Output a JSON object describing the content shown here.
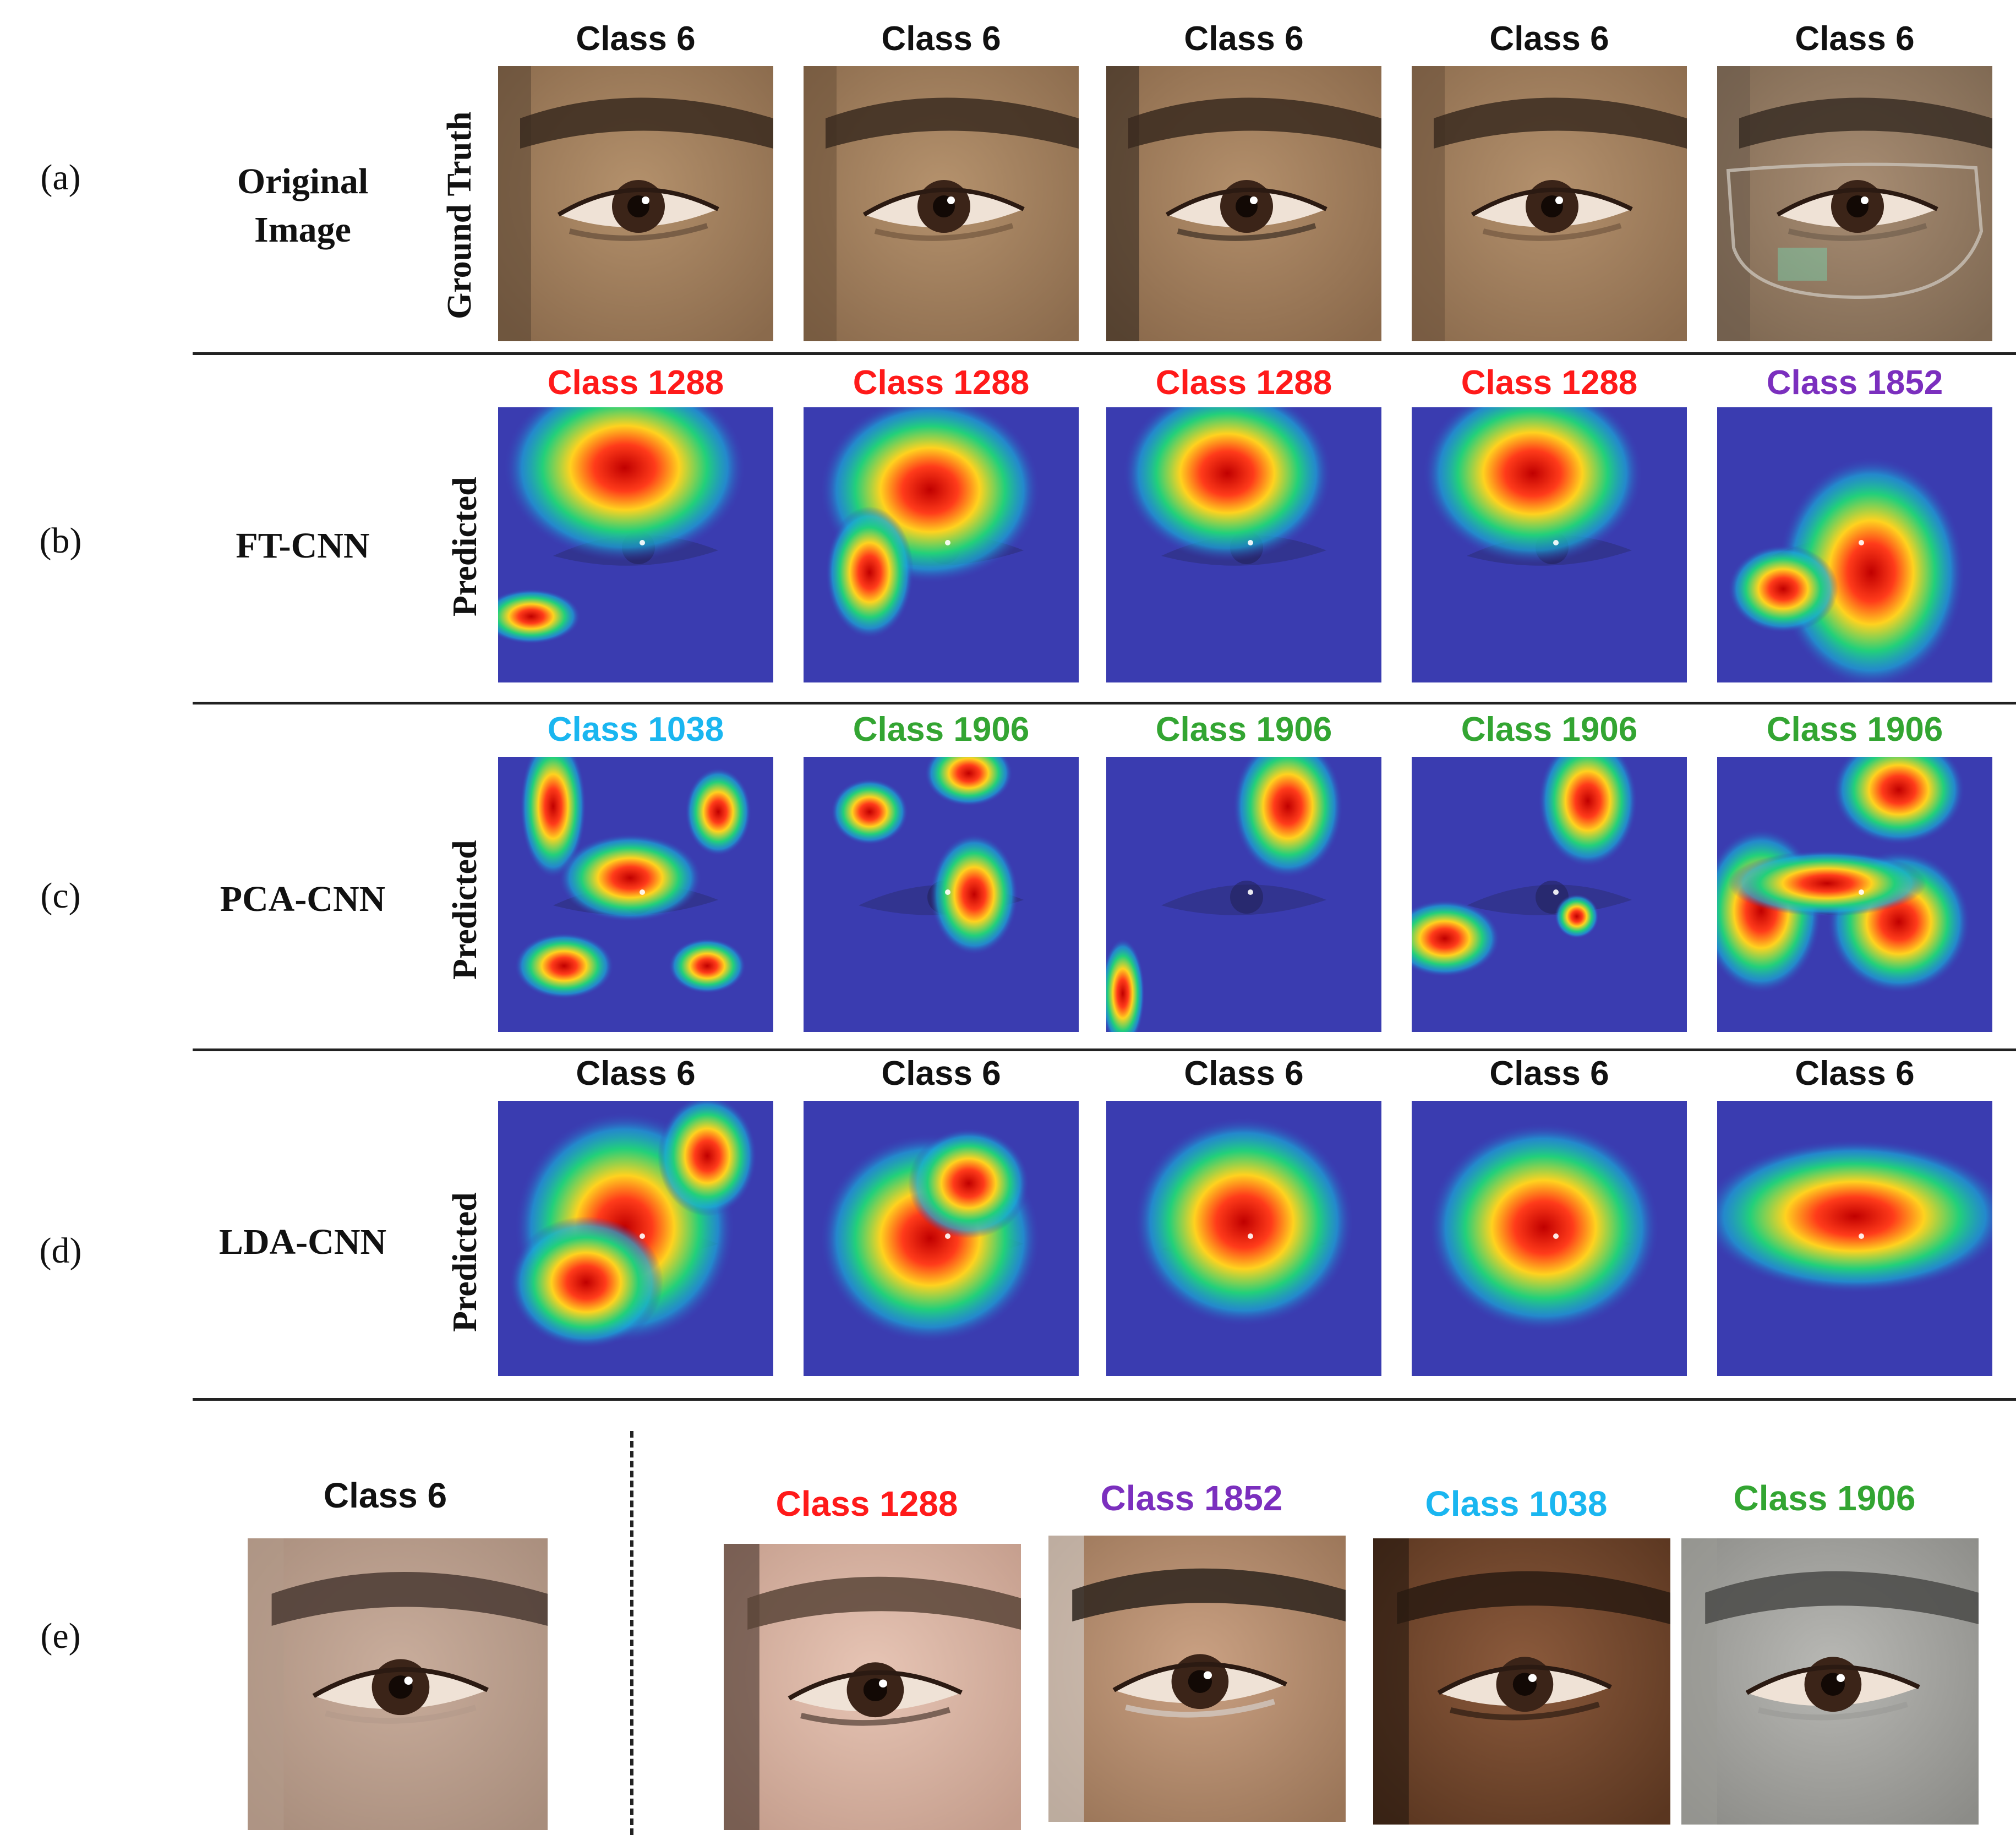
{
  "panels": {
    "a": "(a)",
    "b": "(b)",
    "c": "(c)",
    "d": "(d)",
    "e": "(e)"
  },
  "rows": [
    {
      "method": [
        "Original",
        "Image"
      ],
      "side_label": "Ground Truth",
      "titles": [
        "Class 6",
        "Class 6",
        "Class 6",
        "Class 6",
        "Class 6"
      ],
      "title_colors": [
        "#111111",
        "#111111",
        "#111111",
        "#111111",
        "#111111"
      ]
    },
    {
      "method": [
        "FT-CNN"
      ],
      "side_label": "Predicted",
      "titles": [
        "Class 1288",
        "Class 1288",
        "Class 1288",
        "Class 1288",
        "Class 1852"
      ],
      "title_colors": [
        "#ff1a1a",
        "#ff1a1a",
        "#ff1a1a",
        "#ff1a1a",
        "#7b2fbe"
      ]
    },
    {
      "method": [
        "PCA-CNN"
      ],
      "side_label": "Predicted",
      "titles": [
        "Class 1038",
        "Class 1906",
        "Class 1906",
        "Class 1906",
        "Class 1906"
      ],
      "title_colors": [
        "#1ab6f0",
        "#33a532",
        "#33a532",
        "#33a532",
        "#33a532"
      ]
    },
    {
      "method": [
        "LDA-CNN"
      ],
      "side_label": "Predicted",
      "titles": [
        "Class 6",
        "Class 6",
        "Class 6",
        "Class 6",
        "Class 6"
      ],
      "title_colors": [
        "#111111",
        "#111111",
        "#111111",
        "#111111",
        "#111111"
      ]
    }
  ],
  "bottom": {
    "query_title": "Class 6",
    "query_color": "#111111",
    "gallery_titles": [
      "Class 1288",
      "Class 1852",
      "Class 1038",
      "Class 1906"
    ],
    "gallery_colors": [
      "#ff1a1a",
      "#7b2fbe",
      "#1ab6f0",
      "#33a532"
    ]
  }
}
